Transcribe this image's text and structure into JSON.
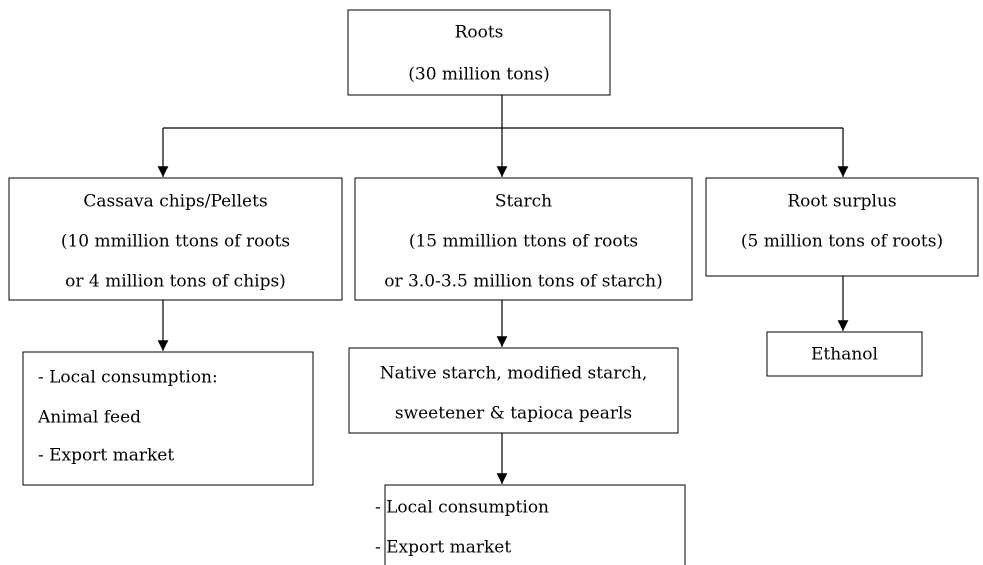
{
  "nodes": [
    {
      "lines": [
        "Roots",
        "(30 million tons)"
      ]
    },
    {
      "lines": [
        "Cassava chips/Pellets",
        "(10 mmillion ttons of roots",
        "or 4 million tons of chips)"
      ]
    },
    {
      "lines": [
        "Starch",
        "(15 mmillion ttons of roots",
        "or 3.0-3.5 million tons of starch)"
      ]
    },
    {
      "lines": [
        "Root surplus",
        "(5 million tons of roots)"
      ]
    },
    {
      "lines": [
        "- Local consumption:",
        "Animal feed",
        "- Export market"
      ]
    },
    {
      "lines": [
        "Native starch, modified starch,",
        "sweetener & tapioca pearls"
      ]
    },
    {
      "lines": [
        "Ethanol"
      ]
    },
    {
      "lines": [
        "- Local consumption",
        "- Export market"
      ]
    }
  ]
}
